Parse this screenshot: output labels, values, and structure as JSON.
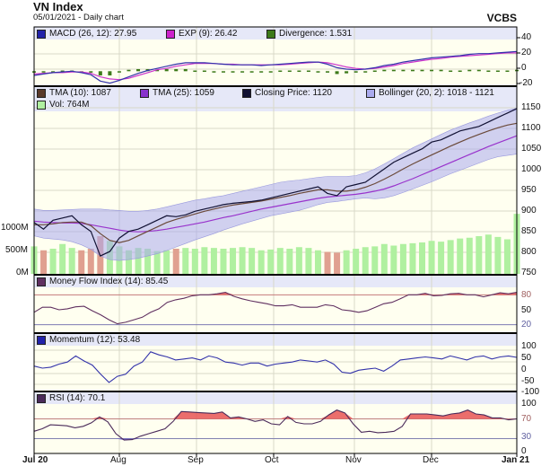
{
  "header": {
    "title": "VN Index",
    "subtitle": "05/01/2021 - Daily chart",
    "brand": "VCBS"
  },
  "colors": {
    "plot_bg": "#fffff0",
    "legend_bg": "#e6e8f8",
    "grid": "#d8d8c8",
    "macd": "#3333aa",
    "exp": "#cc33cc",
    "divergence": "#3d7a1a",
    "close": "#111133",
    "tma10": "#6b4a3a",
    "tma25": "#9933cc",
    "bollinger": "#aaaaee",
    "vol_up": "#b0f0a0",
    "vol_down": "#e0a090",
    "mfi": "#603060",
    "momentum": "#3333aa",
    "rsi": "#4a2a5a",
    "overbought_fill": "#e85555",
    "oversold_fill": "#6655cc"
  },
  "chart_data": [
    {
      "type": "line",
      "title": "MACD",
      "legend": [
        {
          "label": "MACD (26, 12): 27.95",
          "color": "#2222aa"
        },
        {
          "label": "EXP (9): 26.42",
          "color": "#cc22cc"
        },
        {
          "label": "Divergence: 1.531",
          "color": "#3d7a1a"
        }
      ],
      "ylim": [
        -20,
        45
      ],
      "yticks": [
        "40",
        "20",
        "0",
        "-20"
      ],
      "series": [
        {
          "name": "MACD",
          "values": [
            -6,
            -4,
            -2,
            -1,
            0,
            -2,
            -5,
            -14,
            -17,
            -13,
            -8,
            -3,
            1,
            4,
            7,
            10,
            12,
            12,
            12,
            11,
            10,
            9,
            9,
            9,
            8,
            9,
            10,
            11,
            12,
            13,
            13,
            10,
            5,
            3,
            2,
            3,
            5,
            8,
            10,
            13,
            15,
            17,
            19,
            20,
            21,
            22,
            24,
            25,
            25,
            26,
            27,
            28
          ]
        },
        {
          "name": "EXP",
          "values": [
            -4,
            -3,
            -2,
            -2,
            -1,
            -1,
            -3,
            -8,
            -11,
            -12,
            -10,
            -6,
            -2,
            2,
            4,
            7,
            9,
            11,
            11,
            11,
            10,
            10,
            9,
            9,
            9,
            9,
            9,
            10,
            11,
            12,
            13,
            12,
            9,
            6,
            4,
            3,
            4,
            6,
            8,
            11,
            13,
            15,
            17,
            18,
            20,
            21,
            22,
            23,
            24,
            25,
            26,
            26
          ]
        },
        {
          "name": "Divergence",
          "values": [
            -2,
            -1,
            0,
            1,
            1,
            -1,
            -2,
            -6,
            -6,
            -1,
            2,
            3,
            3,
            2,
            3,
            3,
            3,
            1,
            1,
            0,
            0,
            -1,
            0,
            0,
            -1,
            0,
            1,
            1,
            1,
            1,
            0,
            -2,
            -4,
            -3,
            -2,
            0,
            1,
            2,
            2,
            2,
            2,
            2,
            2,
            2,
            1,
            1,
            2,
            2,
            1,
            1,
            1,
            2
          ]
        }
      ]
    },
    {
      "type": "line",
      "title": "Price",
      "legend": [
        {
          "label": "TMA (10): 1087",
          "color": "#5a3a2a"
        },
        {
          "label": "TMA (25): 1059",
          "color": "#8833cc"
        },
        {
          "label": "Closing Price: 1120",
          "color": "#111133"
        },
        {
          "label": "Bollinger (20, 2): 1018 - 1121",
          "color": "#aaaaee"
        },
        {
          "label": "Vol: 764M",
          "color": "#b0f0a0"
        }
      ],
      "ylim": [
        750,
        1170
      ],
      "yticks": [
        "1150",
        "1100",
        "1050",
        "1000",
        "950",
        "900",
        "850",
        "800",
        "750"
      ],
      "vol_ylim": [
        0,
        1200
      ],
      "vol_yticks": [
        "1000M",
        "500M",
        "0M"
      ],
      "xlabels": [
        "Jul 20",
        "Aug",
        "Sep",
        "Oct",
        "Nov",
        "Dec",
        "Jan 21"
      ],
      "series": [
        {
          "name": "Closing Price",
          "values": [
            865,
            850,
            870,
            875,
            880,
            860,
            845,
            790,
            800,
            830,
            845,
            850,
            860,
            870,
            880,
            878,
            882,
            890,
            895,
            900,
            905,
            908,
            910,
            912,
            915,
            920,
            925,
            930,
            935,
            940,
            945,
            930,
            925,
            945,
            950,
            955,
            970,
            985,
            1000,
            1010,
            1020,
            1030,
            1045,
            1050,
            1060,
            1070,
            1075,
            1080,
            1090,
            1100,
            1110,
            1120
          ]
        },
        {
          "name": "TMA (10)",
          "values": [
            860,
            860,
            862,
            865,
            866,
            866,
            858,
            840,
            825,
            820,
            825,
            835,
            845,
            855,
            865,
            872,
            878,
            884,
            890,
            895,
            900,
            904,
            907,
            910,
            913,
            917,
            921,
            925,
            930,
            934,
            938,
            938,
            935,
            935,
            938,
            944,
            952,
            962,
            973,
            985,
            996,
            1006,
            1016,
            1026,
            1036,
            1045,
            1054,
            1062,
            1070,
            1077,
            1083,
            1087
          ]
        },
        {
          "name": "TMA (25)",
          "values": [
            868,
            866,
            865,
            864,
            864,
            863,
            860,
            856,
            852,
            848,
            845,
            844,
            845,
            847,
            850,
            854,
            858,
            862,
            866,
            871,
            876,
            880,
            885,
            890,
            895,
            899,
            903,
            907,
            911,
            915,
            919,
            922,
            924,
            926,
            928,
            931,
            935,
            940,
            947,
            955,
            963,
            972,
            981,
            990,
            999,
            1008,
            1017,
            1026,
            1035,
            1043,
            1051,
            1059
          ]
        },
        {
          "name": "Bollinger Upper",
          "values": [
            895,
            892,
            892,
            893,
            894,
            895,
            895,
            895,
            893,
            892,
            890,
            890,
            892,
            895,
            900,
            905,
            910,
            915,
            918,
            922,
            925,
            930,
            935,
            940,
            945,
            950,
            955,
            958,
            960,
            963,
            966,
            968,
            968,
            968,
            970,
            976,
            985,
            996,
            1008,
            1020,
            1032,
            1042,
            1052,
            1062,
            1072,
            1080,
            1088,
            1095,
            1103,
            1110,
            1116,
            1121
          ]
        },
        {
          "name": "Bollinger Lower",
          "values": [
            835,
            830,
            828,
            826,
            822,
            815,
            805,
            790,
            782,
            780,
            782,
            785,
            790,
            795,
            802,
            810,
            818,
            826,
            833,
            840,
            848,
            855,
            862,
            868,
            874,
            880,
            884,
            888,
            892,
            898,
            905,
            910,
            912,
            915,
            918,
            920,
            918,
            920,
            925,
            932,
            940,
            948,
            956,
            965,
            974,
            982,
            990,
            998,
            1006,
            1012,
            1015,
            1018
          ]
        },
        {
          "name": "Volume (M)",
          "values": [
            350,
            300,
            320,
            380,
            330,
            300,
            320,
            480,
            420,
            350,
            300,
            330,
            320,
            290,
            300,
            320,
            330,
            320,
            340,
            330,
            320,
            330,
            340,
            330,
            300,
            310,
            330,
            320,
            340,
            330,
            300,
            280,
            270,
            300,
            320,
            340,
            350,
            380,
            360,
            380,
            390,
            400,
            420,
            410,
            430,
            450,
            460,
            480,
            500,
            470,
            440,
            764
          ]
        }
      ]
    },
    {
      "type": "line",
      "title": "Money Flow Index (14)",
      "legend": [
        {
          "label": "Money Flow Index (14): 85.45",
          "color": "#603060"
        }
      ],
      "ylim": [
        5,
        95
      ],
      "yticks": [
        "80",
        "50",
        "20"
      ],
      "reference_lines": [
        80,
        20
      ],
      "values": [
        45,
        55,
        55,
        50,
        52,
        56,
        57,
        48,
        40,
        30,
        22,
        25,
        30,
        35,
        45,
        52,
        65,
        70,
        73,
        78,
        80,
        80,
        82,
        85,
        77,
        72,
        68,
        65,
        62,
        58,
        58,
        60,
        55,
        55,
        55,
        60,
        58,
        50,
        48,
        45,
        48,
        55,
        62,
        65,
        72,
        80,
        80,
        83,
        78,
        79,
        82,
        83,
        80,
        80,
        76,
        80,
        84,
        82,
        85
      ]
    },
    {
      "type": "line",
      "title": "Momentum (12)",
      "legend": [
        {
          "label": "Momentum (12): 53.48",
          "color": "#2222aa"
        }
      ],
      "ylim": [
        -110,
        110
      ],
      "yticks": [
        "100",
        "50",
        "0",
        "-50",
        "-100"
      ],
      "values": [
        10,
        0,
        5,
        20,
        30,
        60,
        35,
        15,
        -30,
        -70,
        -40,
        -30,
        10,
        30,
        80,
        65,
        55,
        40,
        45,
        50,
        40,
        60,
        50,
        30,
        25,
        15,
        25,
        25,
        10,
        20,
        25,
        30,
        40,
        35,
        30,
        40,
        20,
        -20,
        -25,
        -10,
        -5,
        0,
        -15,
        10,
        40,
        45,
        50,
        55,
        50,
        45,
        60,
        50,
        40,
        55,
        60,
        45,
        55,
        60,
        53
      ]
    },
    {
      "type": "line",
      "title": "RSI (14)",
      "legend": [
        {
          "label": "RSI (14): 70.1",
          "color": "#4a2a5a"
        }
      ],
      "ylim": [
        0,
        100
      ],
      "yticks": [
        "100",
        "70",
        "30",
        "0"
      ],
      "reference_lines": [
        70,
        30
      ],
      "values": [
        45,
        50,
        58,
        57,
        56,
        52,
        55,
        62,
        74,
        64,
        40,
        27,
        28,
        35,
        40,
        45,
        50,
        65,
        85,
        84,
        83,
        82,
        81,
        84,
        72,
        74,
        70,
        65,
        68,
        60,
        58,
        75,
        63,
        60,
        60,
        65,
        78,
        88,
        82,
        60,
        43,
        45,
        42,
        43,
        45,
        55,
        80,
        80,
        80,
        78,
        76,
        80,
        82,
        88,
        80,
        78,
        72,
        72,
        68,
        70
      ]
    }
  ],
  "panes": {
    "macd": {
      "legend": [
        "MACD (26, 12): 27.95",
        "EXP (9): 26.42",
        "Divergence: 1.531"
      ],
      "ticks": [
        "40",
        "20",
        "0",
        "-20"
      ]
    },
    "price": {
      "legend": [
        "TMA (10): 1087",
        "TMA (25): 1059",
        "Closing Price: 1120",
        "Bollinger (20, 2): 1018 - 1121",
        "Vol: 764M"
      ],
      "ticks": [
        "1150",
        "1100",
        "1050",
        "1000",
        "950",
        "900",
        "850",
        "800",
        "750"
      ],
      "vol_ticks": [
        "1000M",
        "500M",
        "0M"
      ]
    },
    "mfi": {
      "legend": [
        "Money Flow Index (14): 85.45"
      ],
      "ticks": [
        "80",
        "50",
        "20"
      ]
    },
    "momentum": {
      "legend": [
        "Momentum (12): 53.48"
      ],
      "ticks": [
        "100",
        "50",
        "0",
        "-50",
        "-100"
      ]
    },
    "rsi": {
      "legend": [
        "RSI (14): 70.1"
      ],
      "ticks": [
        "100",
        "70",
        "30",
        "0"
      ]
    }
  },
  "x_axis": {
    "labels": [
      "Jul 20",
      "Aug",
      "Sep",
      "Oct",
      "Nov",
      "Dec",
      "Jan 21"
    ]
  }
}
